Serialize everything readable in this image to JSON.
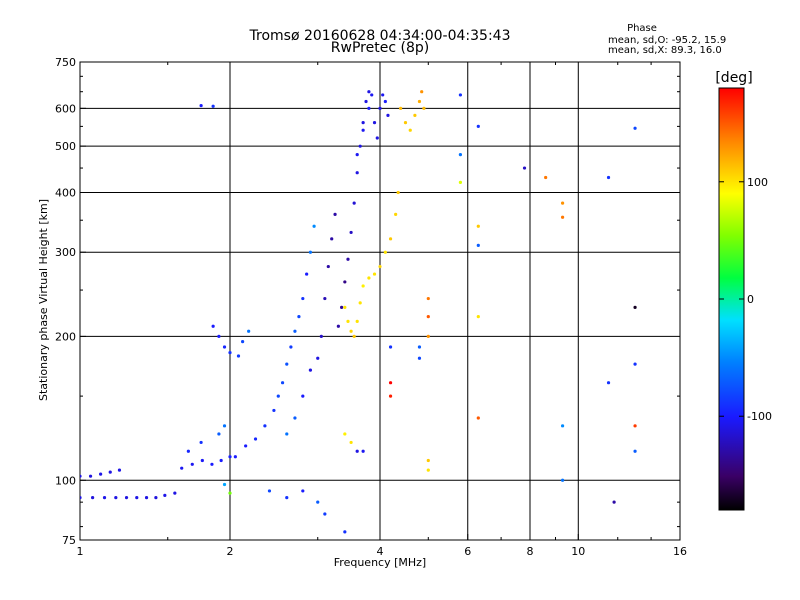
{
  "title_line1": "Tromsø 20160628 04:34:00-04:35:43",
  "title_line2": "RwPretec (8p)",
  "info": {
    "heading": "Phase",
    "line_o": "mean, sd,O: -95.2, 15.9",
    "line_x": "mean, sd,X:  89.3, 16.0"
  },
  "colorbar": {
    "label": "[deg]",
    "ticks": [
      {
        "value": 100,
        "label": "100"
      },
      {
        "value": 0,
        "label": "0"
      },
      {
        "value": -100,
        "label": "-100"
      }
    ],
    "range": [
      -180,
      180
    ]
  },
  "chart_data": {
    "type": "scatter",
    "xlabel": "Frequency [MHz]",
    "ylabel": "Stationary phase Virtual Height [km]",
    "xscale": "log",
    "yscale": "log",
    "xlim": [
      1,
      16
    ],
    "ylim": [
      75,
      750
    ],
    "xticks": [
      {
        "value": 1,
        "label": "1"
      },
      {
        "value": 2,
        "label": "2"
      },
      {
        "value": 4,
        "label": "4"
      },
      {
        "value": 6,
        "label": "6"
      },
      {
        "value": 8,
        "label": "8"
      },
      {
        "value": 10,
        "label": "10"
      },
      {
        "value": 16,
        "label": "16"
      }
    ],
    "yticks": [
      {
        "value": 75,
        "label": "75"
      },
      {
        "value": 100,
        "label": "100"
      },
      {
        "value": 200,
        "label": "200"
      },
      {
        "value": 300,
        "label": "300"
      },
      {
        "value": 400,
        "label": "400"
      },
      {
        "value": 500,
        "label": "500"
      },
      {
        "value": 600,
        "label": "600"
      },
      {
        "value": 750,
        "label": "750"
      }
    ],
    "xgrid": [
      2,
      4,
      6,
      8,
      10
    ],
    "ygrid": [
      100,
      200,
      300,
      400,
      500,
      600
    ],
    "points": [
      {
        "f": 1.0,
        "h": 92,
        "p": -110
      },
      {
        "f": 1.06,
        "h": 92,
        "p": -112
      },
      {
        "f": 1.12,
        "h": 92,
        "p": -108
      },
      {
        "f": 1.18,
        "h": 92,
        "p": -110
      },
      {
        "f": 1.24,
        "h": 92,
        "p": -111
      },
      {
        "f": 1.3,
        "h": 92,
        "p": -109
      },
      {
        "f": 1.36,
        "h": 92,
        "p": -110
      },
      {
        "f": 1.42,
        "h": 92,
        "p": -112
      },
      {
        "f": 1.48,
        "h": 93,
        "p": -108
      },
      {
        "f": 1.55,
        "h": 94,
        "p": -110
      },
      {
        "f": 1.0,
        "h": 102,
        "p": -110
      },
      {
        "f": 1.05,
        "h": 102,
        "p": -112
      },
      {
        "f": 1.1,
        "h": 103,
        "p": -108
      },
      {
        "f": 1.15,
        "h": 104,
        "p": -110
      },
      {
        "f": 1.2,
        "h": 105,
        "p": -109
      },
      {
        "f": 1.6,
        "h": 106,
        "p": -105
      },
      {
        "f": 1.68,
        "h": 108,
        "p": -105
      },
      {
        "f": 1.76,
        "h": 110,
        "p": -103
      },
      {
        "f": 1.84,
        "h": 108,
        "p": -100
      },
      {
        "f": 1.92,
        "h": 110,
        "p": -100
      },
      {
        "f": 2.0,
        "h": 112,
        "p": -98
      },
      {
        "f": 1.65,
        "h": 115,
        "p": -95
      },
      {
        "f": 1.75,
        "h": 120,
        "p": -90
      },
      {
        "f": 1.9,
        "h": 125,
        "p": -70
      },
      {
        "f": 1.95,
        "h": 130,
        "p": -60
      },
      {
        "f": 1.85,
        "h": 210,
        "p": -100
      },
      {
        "f": 1.9,
        "h": 200,
        "p": -100
      },
      {
        "f": 1.95,
        "h": 190,
        "p": -95
      },
      {
        "f": 2.0,
        "h": 185,
        "p": -90
      },
      {
        "f": 2.08,
        "h": 182,
        "p": -85
      },
      {
        "f": 2.12,
        "h": 195,
        "p": -80
      },
      {
        "f": 2.18,
        "h": 205,
        "p": -60
      },
      {
        "f": 1.75,
        "h": 608,
        "p": -100
      },
      {
        "f": 1.85,
        "h": 606,
        "p": -90
      },
      {
        "f": 2.05,
        "h": 112,
        "p": -100
      },
      {
        "f": 2.15,
        "h": 118,
        "p": -100
      },
      {
        "f": 2.25,
        "h": 122,
        "p": -95
      },
      {
        "f": 2.35,
        "h": 130,
        "p": -90
      },
      {
        "f": 2.45,
        "h": 140,
        "p": -90
      },
      {
        "f": 2.5,
        "h": 150,
        "p": -80
      },
      {
        "f": 2.55,
        "h": 160,
        "p": -80
      },
      {
        "f": 2.6,
        "h": 175,
        "p": -75
      },
      {
        "f": 2.65,
        "h": 190,
        "p": -85
      },
      {
        "f": 2.7,
        "h": 205,
        "p": -70
      },
      {
        "f": 2.75,
        "h": 220,
        "p": -80
      },
      {
        "f": 2.8,
        "h": 240,
        "p": -90
      },
      {
        "f": 2.85,
        "h": 270,
        "p": -100
      },
      {
        "f": 2.9,
        "h": 300,
        "p": -60
      },
      {
        "f": 2.95,
        "h": 340,
        "p": -50
      },
      {
        "f": 2.6,
        "h": 125,
        "p": -60
      },
      {
        "f": 2.7,
        "h": 135,
        "p": -70
      },
      {
        "f": 2.8,
        "h": 150,
        "p": -100
      },
      {
        "f": 2.9,
        "h": 170,
        "p": -110
      },
      {
        "f": 3.0,
        "h": 180,
        "p": -110
      },
      {
        "f": 3.05,
        "h": 200,
        "p": -120
      },
      {
        "f": 3.1,
        "h": 240,
        "p": -125
      },
      {
        "f": 3.15,
        "h": 280,
        "p": -130
      },
      {
        "f": 3.2,
        "h": 320,
        "p": -130
      },
      {
        "f": 3.25,
        "h": 360,
        "p": -130
      },
      {
        "f": 3.3,
        "h": 210,
        "p": -130
      },
      {
        "f": 3.35,
        "h": 230,
        "p": -135
      },
      {
        "f": 3.4,
        "h": 260,
        "p": -140
      },
      {
        "f": 3.45,
        "h": 290,
        "p": -130
      },
      {
        "f": 3.5,
        "h": 330,
        "p": -120
      },
      {
        "f": 3.55,
        "h": 380,
        "p": -115
      },
      {
        "f": 3.6,
        "h": 440,
        "p": -110
      },
      {
        "f": 3.65,
        "h": 500,
        "p": -110
      },
      {
        "f": 3.7,
        "h": 560,
        "p": -110
      },
      {
        "f": 3.75,
        "h": 620,
        "p": -110
      },
      {
        "f": 3.8,
        "h": 650,
        "p": -110
      },
      {
        "f": 3.6,
        "h": 480,
        "p": -105
      },
      {
        "f": 3.7,
        "h": 540,
        "p": -105
      },
      {
        "f": 3.8,
        "h": 600,
        "p": -100
      },
      {
        "f": 3.85,
        "h": 640,
        "p": -105
      },
      {
        "f": 3.9,
        "h": 560,
        "p": -110
      },
      {
        "f": 3.95,
        "h": 520,
        "p": -110
      },
      {
        "f": 4.0,
        "h": 600,
        "p": -110
      },
      {
        "f": 4.05,
        "h": 640,
        "p": -105
      },
      {
        "f": 4.1,
        "h": 620,
        "p": -100
      },
      {
        "f": 4.15,
        "h": 580,
        "p": -110
      },
      {
        "f": 3.4,
        "h": 230,
        "p": 100
      },
      {
        "f": 3.45,
        "h": 215,
        "p": 100
      },
      {
        "f": 3.5,
        "h": 205,
        "p": 105
      },
      {
        "f": 3.55,
        "h": 200,
        "p": 110
      },
      {
        "f": 3.6,
        "h": 215,
        "p": 100
      },
      {
        "f": 3.65,
        "h": 235,
        "p": 100
      },
      {
        "f": 3.7,
        "h": 255,
        "p": 95
      },
      {
        "f": 3.8,
        "h": 265,
        "p": 100
      },
      {
        "f": 3.9,
        "h": 270,
        "p": 100
      },
      {
        "f": 4.0,
        "h": 280,
        "p": 105
      },
      {
        "f": 4.1,
        "h": 300,
        "p": 100
      },
      {
        "f": 4.2,
        "h": 320,
        "p": 110
      },
      {
        "f": 4.3,
        "h": 360,
        "p": 105
      },
      {
        "f": 4.35,
        "h": 400,
        "p": 110
      },
      {
        "f": 4.4,
        "h": 600,
        "p": 115
      },
      {
        "f": 4.5,
        "h": 560,
        "p": 110
      },
      {
        "f": 4.6,
        "h": 540,
        "p": 105
      },
      {
        "f": 4.7,
        "h": 580,
        "p": 110
      },
      {
        "f": 4.8,
        "h": 620,
        "p": 120
      },
      {
        "f": 4.85,
        "h": 650,
        "p": 130
      },
      {
        "f": 4.9,
        "h": 600,
        "p": 115
      },
      {
        "f": 3.4,
        "h": 125,
        "p": 95
      },
      {
        "f": 3.5,
        "h": 120,
        "p": 100
      },
      {
        "f": 3.6,
        "h": 115,
        "p": -110
      },
      {
        "f": 3.7,
        "h": 115,
        "p": -105
      },
      {
        "f": 5.0,
        "h": 240,
        "p": 140
      },
      {
        "f": 5.0,
        "h": 220,
        "p": 150
      },
      {
        "f": 5.0,
        "h": 200,
        "p": 130
      },
      {
        "f": 5.0,
        "h": 110,
        "p": 110
      },
      {
        "f": 5.0,
        "h": 105,
        "p": 100
      },
      {
        "f": 5.8,
        "h": 640,
        "p": -90
      },
      {
        "f": 5.8,
        "h": 480,
        "p": -60
      },
      {
        "f": 5.8,
        "h": 420,
        "p": 80
      },
      {
        "f": 6.3,
        "h": 550,
        "p": -90
      },
      {
        "f": 6.3,
        "h": 340,
        "p": 110
      },
      {
        "f": 6.3,
        "h": 310,
        "p": -70
      },
      {
        "f": 6.3,
        "h": 220,
        "p": 100
      },
      {
        "f": 6.3,
        "h": 135,
        "p": 150
      },
      {
        "f": 7.8,
        "h": 450,
        "p": -120
      },
      {
        "f": 8.6,
        "h": 430,
        "p": 140
      },
      {
        "f": 9.3,
        "h": 380,
        "p": 130
      },
      {
        "f": 9.3,
        "h": 355,
        "p": 140
      },
      {
        "f": 9.3,
        "h": 130,
        "p": -50
      },
      {
        "f": 9.3,
        "h": 100,
        "p": -60
      },
      {
        "f": 11.5,
        "h": 430,
        "p": -90
      },
      {
        "f": 11.5,
        "h": 160,
        "p": -90
      },
      {
        "f": 11.8,
        "h": 90,
        "p": -130
      },
      {
        "f": 13.0,
        "h": 545,
        "p": -80
      },
      {
        "f": 13.0,
        "h": 230,
        "p": -170
      },
      {
        "f": 13.0,
        "h": 175,
        "p": -90
      },
      {
        "f": 13.0,
        "h": 130,
        "p": 160
      },
      {
        "f": 13.0,
        "h": 115,
        "p": -70
      },
      {
        "f": 4.8,
        "h": 180,
        "p": -80
      },
      {
        "f": 4.8,
        "h": 190,
        "p": -70
      },
      {
        "f": 4.2,
        "h": 190,
        "p": -90
      },
      {
        "f": 4.2,
        "h": 160,
        "p": 180
      },
      {
        "f": 4.2,
        "h": 150,
        "p": 170
      },
      {
        "f": 2.4,
        "h": 95,
        "p": -80
      },
      {
        "f": 2.6,
        "h": 92,
        "p": -90
      },
      {
        "f": 2.8,
        "h": 95,
        "p": -100
      },
      {
        "f": 3.0,
        "h": 90,
        "p": -70
      },
      {
        "f": 3.1,
        "h": 85,
        "p": -85
      },
      {
        "f": 3.4,
        "h": 78,
        "p": -90
      },
      {
        "f": 2.0,
        "h": 94,
        "p": 50
      },
      {
        "f": 1.95,
        "h": 98,
        "p": -40
      }
    ]
  }
}
